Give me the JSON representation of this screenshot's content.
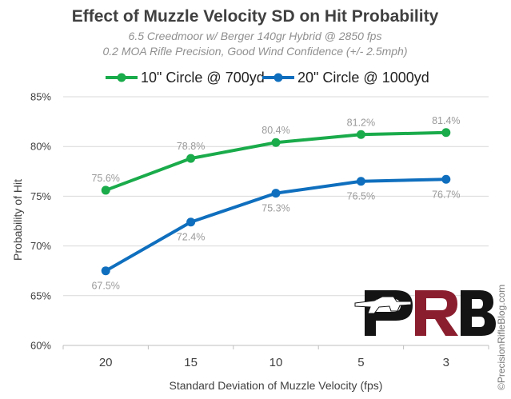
{
  "colors": {
    "series_green": "#1aab4b",
    "series_blue": "#0f6fbe",
    "logo_dark": "#141414",
    "logo_red": "#8b1e2e"
  },
  "chart_data": {
    "type": "line",
    "title": "Effect of Muzzle Velocity SD on Hit Probability",
    "subtitle_lines": [
      "6.5 Creedmoor w/ Berger 140gr Hybrid @ 2850 fps",
      "0.2 MOA Rifle Precision, Good Wind Confidence (+/- 2.5mph)"
    ],
    "xlabel": "Standard Deviation of Muzzle Velocity (fps)",
    "ylabel": "Probability of Hit",
    "categories": [
      "20",
      "15",
      "10",
      "5",
      "3"
    ],
    "ylim": [
      60,
      85
    ],
    "yticks": [
      60,
      65,
      70,
      75,
      80,
      85
    ],
    "ytick_labels": [
      "60%",
      "65%",
      "70%",
      "75%",
      "80%",
      "85%"
    ],
    "grid": true,
    "legend_position": "top",
    "series": [
      {
        "name": "10\" Circle @ 700yd",
        "color": "#1aab4b",
        "values": [
          75.6,
          78.8,
          80.4,
          81.2,
          81.4
        ],
        "labels": [
          "75.6%",
          "78.8%",
          "80.4%",
          "81.2%",
          "81.4%"
        ],
        "label_position": "above"
      },
      {
        "name": "20\" Circle @ 1000yd",
        "color": "#0f6fbe",
        "values": [
          67.5,
          72.4,
          75.3,
          76.5,
          76.7
        ],
        "labels": [
          "67.5%",
          "72.4%",
          "75.3%",
          "76.5%",
          "76.7%"
        ],
        "label_position": "below"
      }
    ]
  },
  "credit": "©PrecisionRifleBlog.com",
  "logo_text": "PRB"
}
